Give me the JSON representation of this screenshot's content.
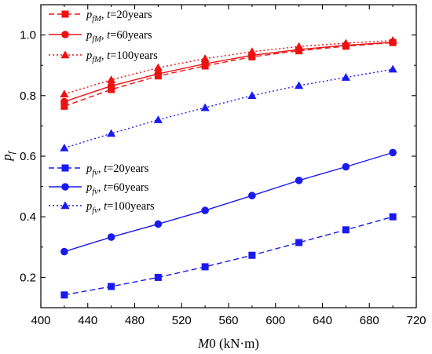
{
  "chart_data": {
    "type": "line",
    "xlabel": "M0 (kN·m)",
    "xlabel_parts": {
      "var": "M",
      "rest": "0 (kN·m)"
    },
    "ylabel": "pf",
    "ylabel_parts": {
      "var": "p",
      "sub": "f"
    },
    "xlim": [
      400,
      720
    ],
    "ylim": [
      0.1,
      1.1
    ],
    "xticks": [
      400,
      440,
      480,
      520,
      560,
      600,
      640,
      680,
      720
    ],
    "yticks": [
      0.2,
      0.4,
      0.6,
      0.8,
      1.0
    ],
    "xtick_labels": [
      "400",
      "440",
      "480",
      "520",
      "560",
      "600",
      "640",
      "680",
      "720"
    ],
    "ytick_labels": [
      "0.2",
      "0.4",
      "0.6",
      "0.8",
      "1.0"
    ],
    "grid": false,
    "x": [
      420,
      460,
      500,
      540,
      580,
      620,
      660,
      700
    ],
    "series": [
      {
        "name": "pfM, t=20years",
        "var": "p",
        "sub": "fM",
        "t_label": "t",
        "t_rest": "=20years",
        "group": "red",
        "color": "#ee1111",
        "dash": "dash",
        "marker": "square",
        "legend_slot": 0,
        "values": [
          0.765,
          0.82,
          0.865,
          0.898,
          0.928,
          0.948,
          0.963,
          0.975
        ]
      },
      {
        "name": "pfM, t=60years",
        "var": "p",
        "sub": "fM",
        "t_label": "t",
        "t_rest": "=60years",
        "group": "red",
        "color": "#ee1111",
        "dash": "solid",
        "marker": "circle",
        "legend_slot": 1,
        "values": [
          0.78,
          0.832,
          0.872,
          0.905,
          0.933,
          0.952,
          0.966,
          0.976
        ]
      },
      {
        "name": "pfM, t=100years",
        "var": "p",
        "sub": "fM",
        "t_label": "t",
        "t_rest": "=100years",
        "group": "red",
        "color": "#ee1111",
        "dash": "dot",
        "marker": "triangle",
        "legend_slot": 2,
        "values": [
          0.805,
          0.852,
          0.892,
          0.922,
          0.945,
          0.962,
          0.973,
          0.982
        ]
      },
      {
        "name": "pfv, t=20years",
        "var": "p",
        "sub": "fv",
        "t_label": "t",
        "t_rest": "=20years",
        "group": "blue",
        "color": "#1a1af0",
        "dash": "dash",
        "marker": "square",
        "legend_slot": 3,
        "values": [
          0.142,
          0.17,
          0.2,
          0.235,
          0.273,
          0.315,
          0.357,
          0.4
        ]
      },
      {
        "name": "pfv, t=60years",
        "var": "p",
        "sub": "fv",
        "t_label": "t",
        "t_rest": "=60years",
        "group": "blue",
        "color": "#1a1af0",
        "dash": "solid",
        "marker": "circle",
        "legend_slot": 4,
        "values": [
          0.285,
          0.333,
          0.376,
          0.421,
          0.47,
          0.52,
          0.565,
          0.612
        ]
      },
      {
        "name": "pfv, t=100years",
        "var": "p",
        "sub": "fv",
        "t_label": "t",
        "t_rest": "=100years",
        "group": "blue",
        "color": "#1a1af0",
        "dash": "dot",
        "marker": "triangle",
        "legend_slot": 5,
        "values": [
          0.627,
          0.675,
          0.72,
          0.76,
          0.8,
          0.833,
          0.86,
          0.887
        ]
      }
    ],
    "legend_placement": [
      "top-left",
      "middle-left"
    ]
  }
}
